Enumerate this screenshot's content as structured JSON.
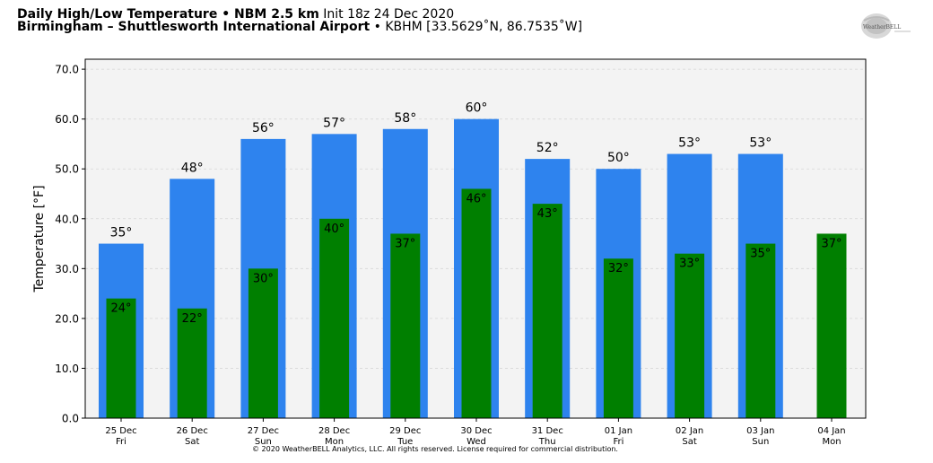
{
  "header": {
    "title_bold": "Daily High/Low Temperature • NBM 2.5 km",
    "init": "Init 18z 24 Dec 2020",
    "location_bold": "Birmingham – Shuttlesworth International Airport",
    "station": "• KBHM [33.5629˚N, 86.7535˚W]"
  },
  "logo": {
    "text": "WeatherBELL"
  },
  "copyright": "© 2020 WeatherBELL Analytics, LLC. All rights reserved. License required for commercial distribution.",
  "colors": {
    "high": "#2e83ee",
    "low": "#007f00",
    "plot_bg": "#f3f3f3"
  },
  "chart_data": {
    "type": "bar",
    "title": "Daily High/Low Temperature • NBM 2.5 km",
    "ylabel": "Temperature [°F]",
    "xlabel": "",
    "ylim": [
      0,
      72
    ],
    "yticks": [
      "0.0",
      "10.0",
      "20.0",
      "30.0",
      "40.0",
      "50.0",
      "60.0",
      "70.0"
    ],
    "ytick_values": [
      0,
      10,
      20,
      30,
      40,
      50,
      60,
      70
    ],
    "grid": true,
    "categories": [
      [
        "25 Dec",
        "Fri"
      ],
      [
        "26 Dec",
        "Sat"
      ],
      [
        "27 Dec",
        "Sun"
      ],
      [
        "28 Dec",
        "Mon"
      ],
      [
        "29 Dec",
        "Tue"
      ],
      [
        "30 Dec",
        "Wed"
      ],
      [
        "31 Dec",
        "Thu"
      ],
      [
        "01 Jan",
        "Fri"
      ],
      [
        "02 Jan",
        "Sat"
      ],
      [
        "03 Jan",
        "Sun"
      ],
      [
        "04 Jan",
        "Mon"
      ]
    ],
    "series": [
      {
        "key": "high",
        "values": [
          35,
          48,
          56,
          57,
          58,
          60,
          52,
          50,
          53,
          53,
          null
        ],
        "labels": [
          "35°",
          "48°",
          "56°",
          "57°",
          "58°",
          "60°",
          "52°",
          "50°",
          "53°",
          "53°",
          null
        ]
      },
      {
        "key": "low",
        "values": [
          24,
          22,
          30,
          40,
          37,
          46,
          43,
          32,
          33,
          35,
          37
        ],
        "labels": [
          "24°",
          "22°",
          "30°",
          "40°",
          "37°",
          "46°",
          "43°",
          "32°",
          "33°",
          "35°",
          "37°"
        ]
      }
    ]
  }
}
